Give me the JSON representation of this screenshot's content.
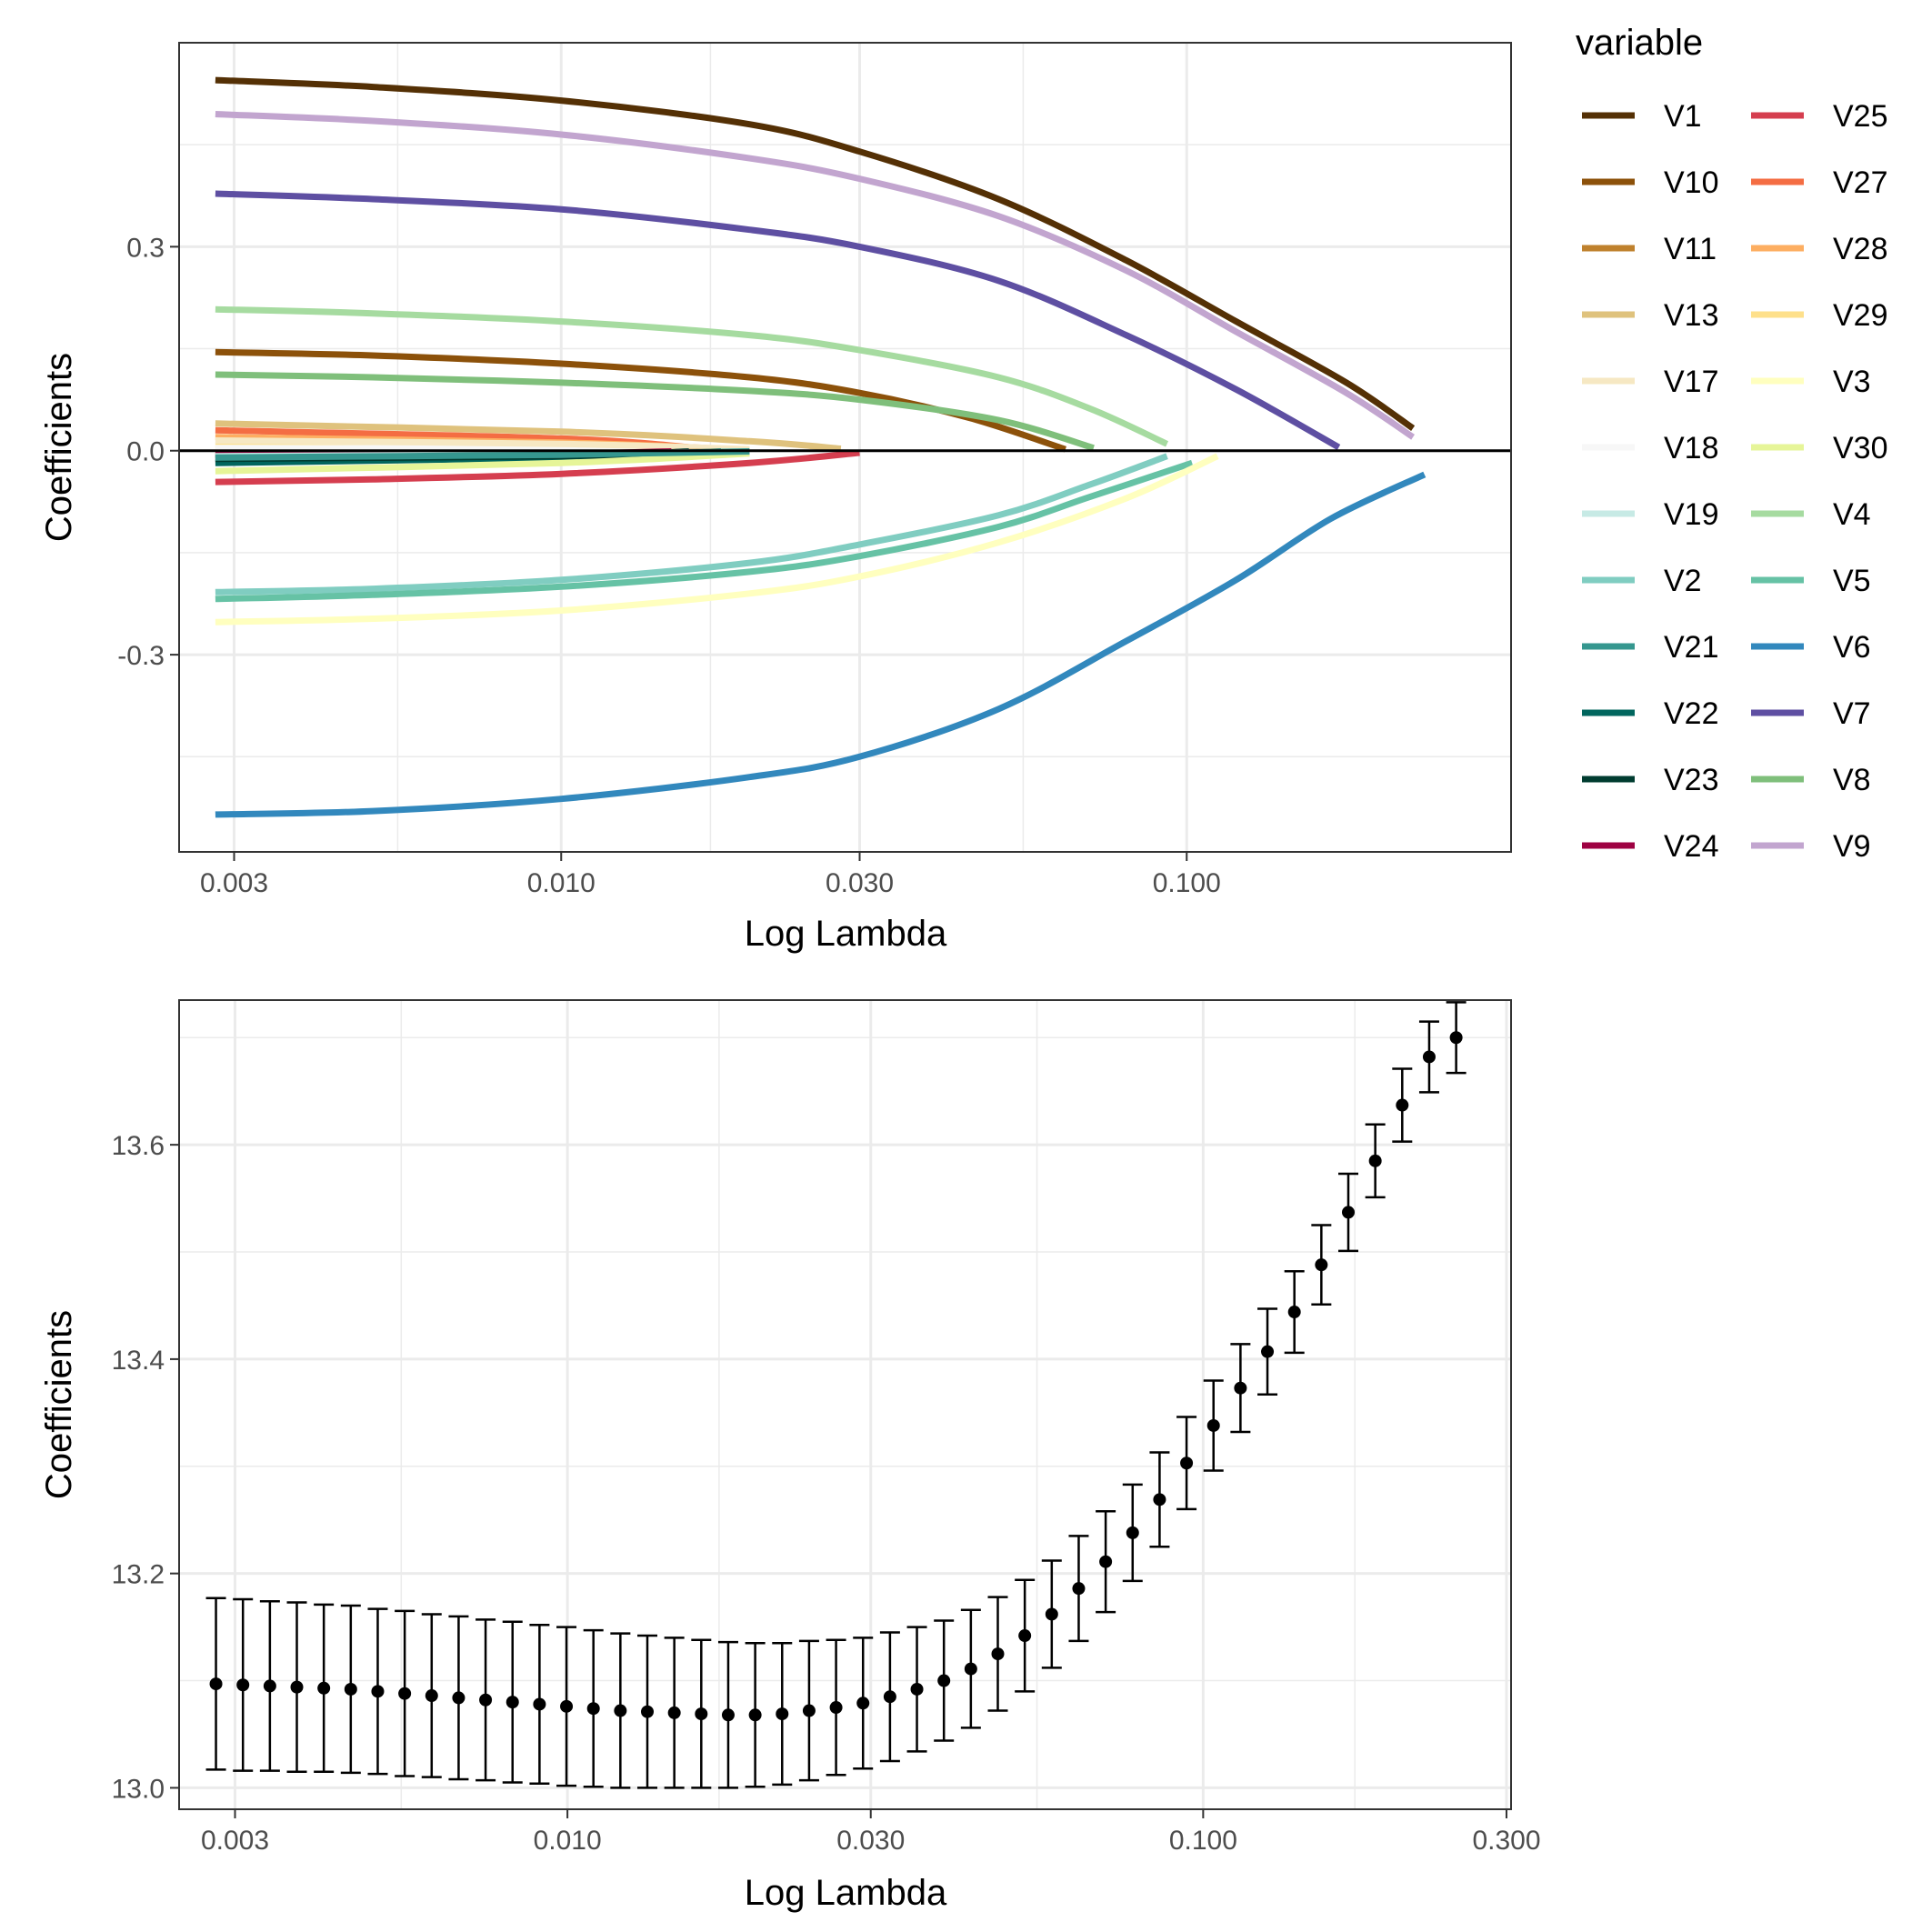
{
  "chart_data": [
    {
      "type": "line",
      "id": "coef-path",
      "xlabel": "Log Lambda",
      "ylabel": "Coefficients",
      "xscale": "log10",
      "xlim": [
        0.00245,
        0.33
      ],
      "ylim": [
        -0.59,
        0.6
      ],
      "xticks": [
        0.003,
        0.01,
        0.03,
        0.1
      ],
      "xtick_labels": [
        "0.003",
        "0.010",
        "0.030",
        "0.100"
      ],
      "yticks": [
        -0.3,
        0.0,
        0.3
      ],
      "ytick_labels": [
        "-0.3",
        "0.0",
        "0.3"
      ],
      "hline": 0,
      "legend_title": "variable",
      "legend_position": "right",
      "series": [
        {
          "name": "V1",
          "color": "#543005",
          "x": [
            0.0028,
            0.005,
            0.01,
            0.02,
            0.03,
            0.05,
            0.08,
            0.12,
            0.18,
            0.23
          ],
          "values": [
            0.545,
            0.535,
            0.515,
            0.48,
            0.44,
            0.37,
            0.28,
            0.19,
            0.1,
            0.033
          ]
        },
        {
          "name": "V9",
          "color": "#c2a5cf",
          "x": [
            0.0028,
            0.005,
            0.01,
            0.02,
            0.03,
            0.05,
            0.08,
            0.12,
            0.18,
            0.23
          ],
          "values": [
            0.495,
            0.485,
            0.465,
            0.43,
            0.4,
            0.345,
            0.265,
            0.175,
            0.085,
            0.02
          ]
        },
        {
          "name": "V7",
          "color": "#5e4fa2",
          "x": [
            0.0028,
            0.005,
            0.01,
            0.02,
            0.03,
            0.05,
            0.08,
            0.12,
            0.175
          ],
          "values": [
            0.378,
            0.37,
            0.355,
            0.325,
            0.3,
            0.25,
            0.17,
            0.09,
            0.005
          ]
        },
        {
          "name": "V4",
          "color": "#a6dba0",
          "x": [
            0.0028,
            0.005,
            0.01,
            0.02,
            0.03,
            0.05,
            0.07,
            0.093
          ],
          "values": [
            0.208,
            0.202,
            0.19,
            0.17,
            0.148,
            0.108,
            0.062,
            0.01
          ]
        },
        {
          "name": "V10",
          "color": "#8c510a",
          "x": [
            0.0028,
            0.005,
            0.01,
            0.02,
            0.03,
            0.045,
            0.064
          ],
          "values": [
            0.145,
            0.14,
            0.128,
            0.108,
            0.085,
            0.048,
            0.002
          ]
        },
        {
          "name": "V8",
          "color": "#7fbf7b",
          "x": [
            0.0028,
            0.005,
            0.01,
            0.02,
            0.03,
            0.05,
            0.071
          ],
          "values": [
            0.112,
            0.108,
            0.1,
            0.088,
            0.075,
            0.045,
            0.004
          ]
        },
        {
          "name": "V13",
          "color": "#dfc27d",
          "x": [
            0.0028,
            0.01,
            0.02,
            0.028
          ],
          "values": [
            0.04,
            0.028,
            0.014,
            0.003
          ]
        },
        {
          "name": "V27",
          "color": "#f46d43",
          "x": [
            0.0028,
            0.01,
            0.017
          ],
          "values": [
            0.03,
            0.018,
            0.003
          ]
        },
        {
          "name": "V28",
          "color": "#fdae61",
          "x": [
            0.0028,
            0.01,
            0.019
          ],
          "values": [
            0.02,
            0.012,
            0.002
          ]
        },
        {
          "name": "V29",
          "color": "#fee08b",
          "x": [
            0.0028,
            0.01,
            0.02
          ],
          "values": [
            0.008,
            0.005,
            0.001
          ]
        },
        {
          "name": "V18",
          "color": "#f7f7f7",
          "x": [
            0.0028,
            0.01,
            0.02
          ],
          "values": [
            0.004,
            0.003,
            0.001
          ]
        },
        {
          "name": "V17",
          "color": "#f6e8c3",
          "x": [
            0.0028,
            0.01,
            0.02
          ],
          "values": [
            0.015,
            0.01,
            0.002
          ]
        },
        {
          "name": "V11",
          "color": "#bf812d",
          "x": [
            0.0028,
            0.01,
            0.018
          ],
          "values": [
            -0.005,
            -0.004,
            -0.001
          ]
        },
        {
          "name": "V22",
          "color": "#01665e",
          "x": [
            0.0028,
            0.01,
            0.018
          ],
          "values": [
            -0.018,
            -0.01,
            -0.001
          ]
        },
        {
          "name": "V23",
          "color": "#003c30",
          "x": [
            0.0028,
            0.01,
            0.016
          ],
          "values": [
            -0.012,
            -0.008,
            -0.001
          ]
        },
        {
          "name": "V30",
          "color": "#e6f598",
          "x": [
            0.0028,
            0.01,
            0.02
          ],
          "values": [
            -0.03,
            -0.018,
            -0.004
          ]
        },
        {
          "name": "V24",
          "color": "#9e0142",
          "x": [
            0.0028,
            0.01,
            0.015
          ],
          "values": [
            -0.006,
            -0.004,
            -0.001
          ]
        },
        {
          "name": "V25",
          "color": "#d53e4f",
          "x": [
            0.0028,
            0.005,
            0.01,
            0.02,
            0.03
          ],
          "values": [
            -0.046,
            -0.042,
            -0.034,
            -0.018,
            -0.003
          ]
        },
        {
          "name": "V19",
          "color": "#c7eae5",
          "x": [
            0.0028,
            0.01,
            0.02
          ],
          "values": [
            -0.008,
            -0.005,
            -0.001
          ]
        },
        {
          "name": "V21",
          "color": "#35978f",
          "x": [
            0.0028,
            0.01,
            0.02
          ],
          "values": [
            -0.01,
            -0.006,
            -0.001
          ]
        },
        {
          "name": "V2",
          "color": "#80cdc1",
          "x": [
            0.0028,
            0.005,
            0.01,
            0.02,
            0.03,
            0.05,
            0.07,
            0.093
          ],
          "values": [
            -0.208,
            -0.203,
            -0.19,
            -0.165,
            -0.138,
            -0.095,
            -0.05,
            -0.008
          ]
        },
        {
          "name": "V5",
          "color": "#66c2a5",
          "x": [
            0.0028,
            0.005,
            0.01,
            0.02,
            0.03,
            0.05,
            0.07,
            0.102
          ],
          "values": [
            -0.218,
            -0.212,
            -0.2,
            -0.178,
            -0.155,
            -0.112,
            -0.068,
            -0.018
          ]
        },
        {
          "name": "V3",
          "color": "#ffffbf",
          "x": [
            0.0028,
            0.005,
            0.01,
            0.02,
            0.03,
            0.05,
            0.08,
            0.112
          ],
          "values": [
            -0.252,
            -0.247,
            -0.235,
            -0.21,
            -0.185,
            -0.135,
            -0.07,
            -0.008
          ]
        },
        {
          "name": "V6",
          "color": "#3288bd",
          "x": [
            0.0028,
            0.005,
            0.01,
            0.02,
            0.03,
            0.05,
            0.08,
            0.12,
            0.17,
            0.24
          ],
          "values": [
            -0.535,
            -0.53,
            -0.512,
            -0.48,
            -0.45,
            -0.38,
            -0.28,
            -0.19,
            -0.1,
            -0.035
          ]
        }
      ]
    },
    {
      "type": "errorbar",
      "id": "cv-curve",
      "xlabel": "Log Lambda",
      "ylabel": "Coefficients",
      "xscale": "log10",
      "xlim": [
        0.00245,
        0.305
      ],
      "ylim": [
        12.98,
        13.735
      ],
      "xticks": [
        0.003,
        0.01,
        0.03,
        0.1,
        0.3
      ],
      "xtick_labels": [
        "0.003",
        "0.010",
        "0.030",
        "0.100",
        "0.300"
      ],
      "yticks": [
        13.0,
        13.2,
        13.4,
        13.6
      ],
      "ytick_labels": [
        "13.0",
        "13.2",
        "13.4",
        "13.6"
      ],
      "x_start": 0.0028,
      "x_end": 0.25,
      "mean": [
        13.097,
        13.096,
        13.095,
        13.094,
        13.093,
        13.092,
        13.09,
        13.088,
        13.086,
        13.084,
        13.082,
        13.08,
        13.078,
        13.076,
        13.074,
        13.072,
        13.071,
        13.07,
        13.069,
        13.068,
        13.068,
        13.069,
        13.072,
        13.075,
        13.079,
        13.085,
        13.092,
        13.1,
        13.111,
        13.125,
        13.142,
        13.162,
        13.186,
        13.211,
        13.238,
        13.269,
        13.303,
        13.338,
        13.373,
        13.407,
        13.444,
        13.488,
        13.537,
        13.585,
        13.637,
        13.682,
        13.7
      ],
      "half_width": [
        0.08,
        0.08,
        0.079,
        0.079,
        0.078,
        0.078,
        0.077,
        0.077,
        0.076,
        0.076,
        0.075,
        0.075,
        0.074,
        0.074,
        0.073,
        0.072,
        0.071,
        0.07,
        0.069,
        0.068,
        0.067,
        0.066,
        0.065,
        0.063,
        0.061,
        0.06,
        0.058,
        0.056,
        0.055,
        0.053,
        0.052,
        0.05,
        0.049,
        0.047,
        0.045,
        0.044,
        0.043,
        0.042,
        0.041,
        0.04,
        0.038,
        0.037,
        0.036,
        0.034,
        0.034,
        0.033,
        0.033
      ]
    }
  ]
}
